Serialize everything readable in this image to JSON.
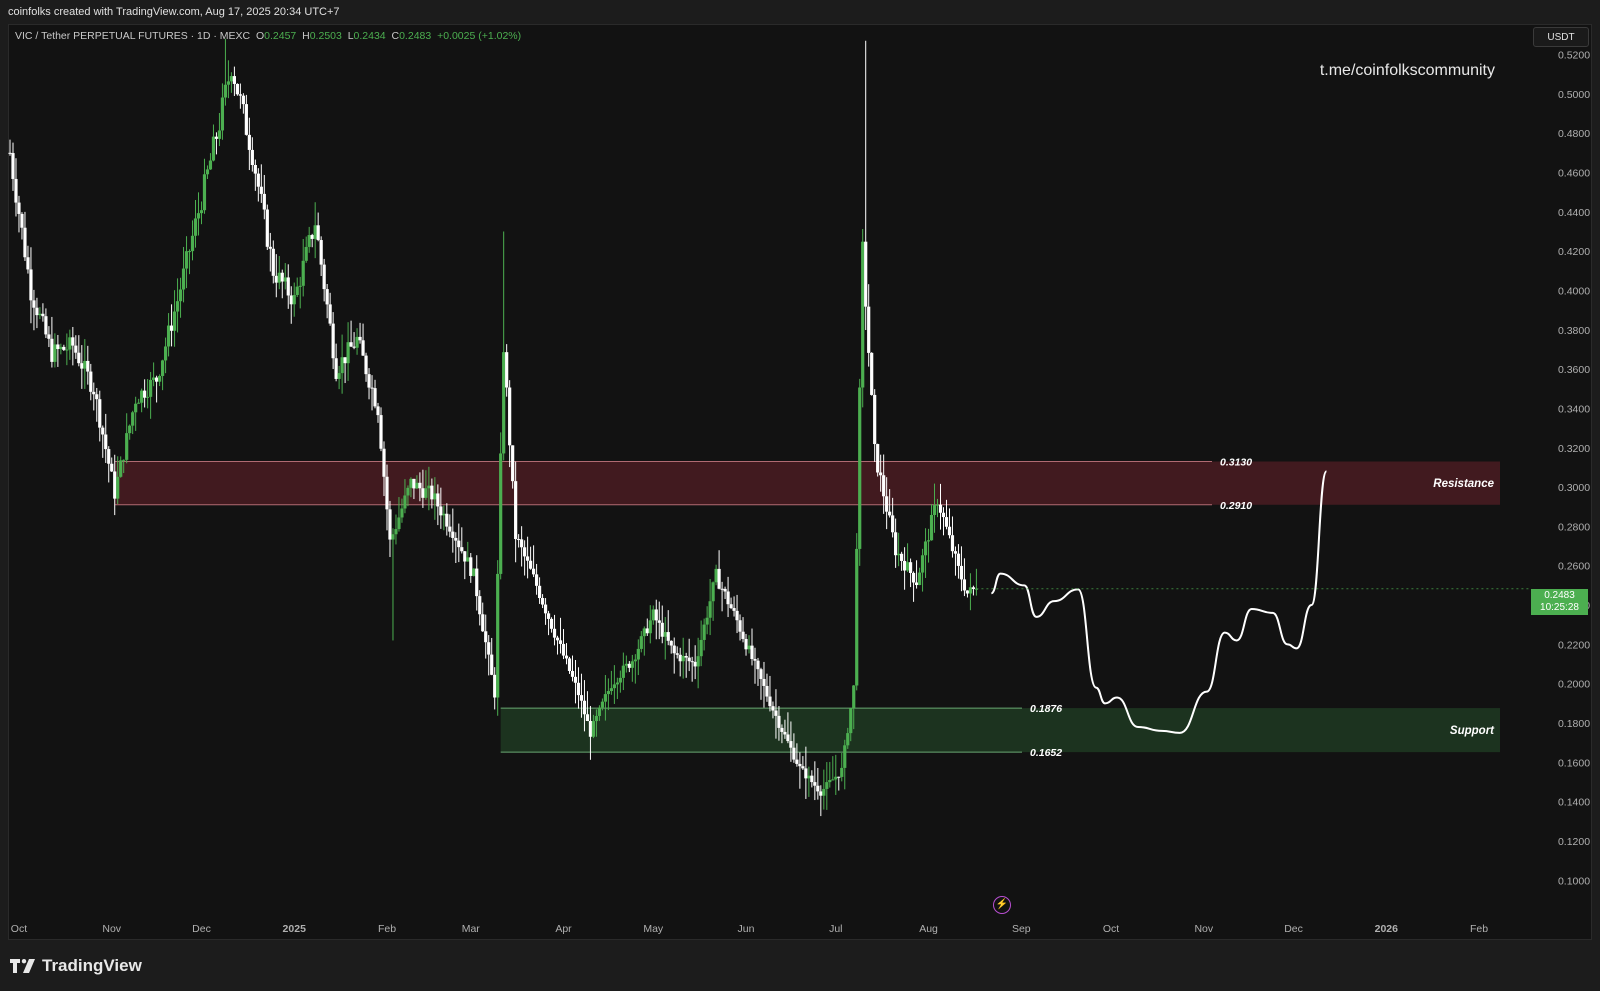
{
  "header": {
    "credit": "coinfolks created with TradingView.com, Aug 17, 2025 20:34 UTC+7"
  },
  "legend": {
    "symbol": "VIC / Tether PERPETUAL FUTURES · 1D · MEXC",
    "o_label": "O",
    "o_value": "0.2457",
    "h_label": "H",
    "h_value": "0.2503",
    "l_label": "L",
    "l_value": "0.2434",
    "c_label": "C",
    "c_value": "0.2483",
    "change": "+0.0025 (+1.02%)"
  },
  "watermark": "t.me/coinfolkscommunity",
  "currency_button": "USDT",
  "last_price": {
    "value": "0.2483",
    "countdown": "10:25:28"
  },
  "brand": {
    "name": "TradingView"
  },
  "icons": {
    "brand_logo": "tradingview-logo-icon",
    "replay": "lightning-icon"
  },
  "colors": {
    "up": "#4caf50",
    "down": "#ffffff",
    "resistance_zone": "#4a1c22",
    "support_zone": "#1f3a22",
    "background": "#121212"
  },
  "chart_data": {
    "type": "candlestick",
    "interval": "1D",
    "y_axis": {
      "ticks": [
        "0.5200",
        "0.5000",
        "0.4800",
        "0.4600",
        "0.4400",
        "0.4200",
        "0.4000",
        "0.3800",
        "0.3600",
        "0.3400",
        "0.3200",
        "0.3000",
        "0.2800",
        "0.2600",
        "0.2400",
        "0.2200",
        "0.2000",
        "0.1800",
        "0.1600",
        "0.1400",
        "0.1200",
        "0.1000"
      ],
      "ylim": [
        0.09,
        0.535
      ]
    },
    "x_axis": {
      "ticks": [
        "Oct",
        "Nov",
        "Dec",
        "2025",
        "Feb",
        "Mar",
        "Apr",
        "May",
        "Jun",
        "Jul",
        "Aug",
        "Sep",
        "Oct",
        "Nov",
        "Dec",
        "2026",
        "Feb"
      ],
      "xlim": [
        "2024-09-28",
        "2026-02-08"
      ]
    },
    "zones": [
      {
        "name": "Resistance",
        "top": 0.313,
        "bottom": 0.291,
        "top_label": "0.3130",
        "bottom_label": "0.2910",
        "start": "2024-11-02",
        "end": "2026-02-08"
      },
      {
        "name": "Support",
        "top": 0.1876,
        "bottom": 0.1652,
        "top_label": "0.1876",
        "bottom_label": "0.1652",
        "start": "2025-03-11",
        "end": "2026-02-08"
      }
    ],
    "price_path": [
      [
        "2024-09-28",
        0.47
      ],
      [
        "2024-10-05",
        0.4
      ],
      [
        "2024-10-12",
        0.368
      ],
      [
        "2024-10-19",
        0.372
      ],
      [
        "2024-10-26",
        0.35
      ],
      [
        "2024-11-02",
        0.297
      ],
      [
        "2024-11-09",
        0.345
      ],
      [
        "2024-11-16",
        0.355
      ],
      [
        "2024-11-23",
        0.395
      ],
      [
        "2024-11-30",
        0.44
      ],
      [
        "2024-12-07",
        0.485
      ],
      [
        "2024-12-11",
        0.515
      ],
      [
        "2024-12-18",
        0.47
      ],
      [
        "2024-12-25",
        0.41
      ],
      [
        "2025-01-01",
        0.395
      ],
      [
        "2025-01-08",
        0.435
      ],
      [
        "2025-01-15",
        0.36
      ],
      [
        "2025-01-22",
        0.375
      ],
      [
        "2025-01-29",
        0.34
      ],
      [
        "2025-02-02",
        0.272
      ],
      [
        "2025-02-09",
        0.302
      ],
      [
        "2025-02-16",
        0.296
      ],
      [
        "2025-02-23",
        0.278
      ],
      [
        "2025-03-02",
        0.255
      ],
      [
        "2025-03-09",
        0.195
      ],
      [
        "2025-03-12",
        0.372
      ],
      [
        "2025-03-16",
        0.275
      ],
      [
        "2025-03-23",
        0.25
      ],
      [
        "2025-03-30",
        0.222
      ],
      [
        "2025-04-06",
        0.195
      ],
      [
        "2025-04-10",
        0.175
      ],
      [
        "2025-04-17",
        0.2
      ],
      [
        "2025-04-24",
        0.212
      ],
      [
        "2025-05-01",
        0.235
      ],
      [
        "2025-05-08",
        0.215
      ],
      [
        "2025-05-15",
        0.21
      ],
      [
        "2025-05-22",
        0.255
      ],
      [
        "2025-05-29",
        0.232
      ],
      [
        "2025-06-05",
        0.205
      ],
      [
        "2025-06-12",
        0.18
      ],
      [
        "2025-06-19",
        0.157
      ],
      [
        "2025-06-26",
        0.145
      ],
      [
        "2025-07-03",
        0.156
      ],
      [
        "2025-07-07",
        0.198
      ],
      [
        "2025-07-10",
        0.42
      ],
      [
        "2025-07-14",
        0.318
      ],
      [
        "2025-07-21",
        0.268
      ],
      [
        "2025-07-28",
        0.252
      ],
      [
        "2025-08-04",
        0.294
      ],
      [
        "2025-08-11",
        0.258
      ],
      [
        "2025-08-14",
        0.246
      ],
      [
        "2025-08-17",
        0.2483
      ]
    ],
    "spikes": [
      [
        "2024-12-09",
        0.528
      ],
      [
        "2025-03-12",
        0.43
      ],
      [
        "2025-07-11",
        0.527
      ],
      [
        "2025-02-03",
        0.222
      ],
      [
        "2025-06-27",
        0.136
      ]
    ],
    "projection": [
      [
        "2025-08-22",
        0.246
      ],
      [
        "2025-08-25",
        0.256
      ],
      [
        "2025-09-02",
        0.25
      ],
      [
        "2025-09-06",
        0.234
      ],
      [
        "2025-09-12",
        0.242
      ],
      [
        "2025-09-20",
        0.248
      ],
      [
        "2025-09-26",
        0.198
      ],
      [
        "2025-09-29",
        0.19
      ],
      [
        "2025-10-03",
        0.193
      ],
      [
        "2025-10-10",
        0.178
      ],
      [
        "2025-10-18",
        0.176
      ],
      [
        "2025-10-24",
        0.175
      ],
      [
        "2025-11-02",
        0.196
      ],
      [
        "2025-11-08",
        0.226
      ],
      [
        "2025-11-12",
        0.222
      ],
      [
        "2025-11-17",
        0.238
      ],
      [
        "2025-11-24",
        0.236
      ],
      [
        "2025-11-29",
        0.22
      ],
      [
        "2025-12-02",
        0.218
      ],
      [
        "2025-12-07",
        0.24
      ],
      [
        "2025-12-12",
        0.308
      ]
    ]
  }
}
